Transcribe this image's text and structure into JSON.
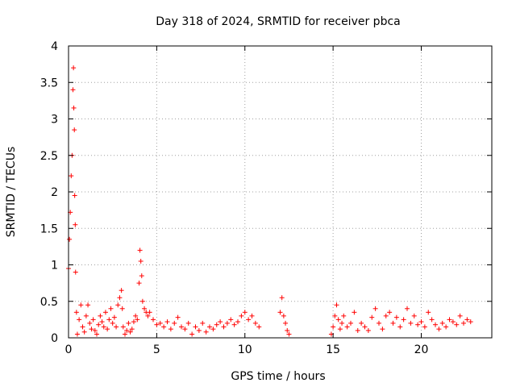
{
  "chart_data": {
    "type": "scatter",
    "title": "Day 318 of 2024, SRMTID for receiver pbca",
    "xlabel": "GPS time / hours",
    "ylabel": "SRMTID / TECUs",
    "xlim": [
      0,
      24
    ],
    "ylim": [
      0,
      4
    ],
    "xticks": [
      0,
      5,
      10,
      15,
      20
    ],
    "xtick_labels": [
      "0",
      "5",
      "10",
      "15",
      "20"
    ],
    "yticks": [
      0,
      0.5,
      1,
      1.5,
      2,
      2.5,
      3,
      3.5,
      4
    ],
    "ytick_labels": [
      "0",
      "0.5",
      "1",
      "1.5",
      "2",
      "2.5",
      "3",
      "3.5",
      "4"
    ],
    "grid": true,
    "marker": "+",
    "color": "#ff0000",
    "series": [
      {
        "name": "SRMTID",
        "x": [
          0.0,
          0.05,
          0.1,
          0.15,
          0.2,
          0.25,
          0.28,
          0.3,
          0.33,
          0.35,
          0.38,
          0.4,
          0.45,
          0.5,
          0.6,
          0.7,
          0.8,
          0.9,
          1.0,
          1.1,
          1.2,
          1.3,
          1.4,
          1.5,
          1.6,
          1.7,
          1.8,
          1.9,
          2.0,
          2.1,
          2.2,
          2.3,
          2.4,
          2.5,
          2.6,
          2.7,
          2.8,
          2.9,
          3.0,
          3.05,
          3.1,
          3.2,
          3.3,
          3.4,
          3.5,
          3.6,
          3.7,
          3.8,
          3.9,
          4.0,
          4.05,
          4.1,
          4.15,
          4.2,
          4.3,
          4.4,
          4.5,
          4.6,
          4.8,
          5.0,
          5.2,
          5.4,
          5.6,
          5.8,
          6.0,
          6.2,
          6.4,
          6.6,
          6.8,
          7.0,
          7.2,
          7.4,
          7.6,
          7.8,
          8.0,
          8.2,
          8.4,
          8.6,
          8.8,
          9.0,
          9.2,
          9.4,
          9.6,
          9.8,
          10.0,
          10.2,
          10.4,
          10.6,
          10.8,
          12.0,
          12.1,
          12.2,
          12.3,
          12.4,
          12.5,
          14.9,
          15.0,
          15.1,
          15.2,
          15.3,
          15.4,
          15.5,
          15.6,
          15.8,
          16.0,
          16.2,
          16.4,
          16.6,
          16.8,
          17.0,
          17.2,
          17.4,
          17.6,
          17.8,
          18.0,
          18.2,
          18.4,
          18.6,
          18.8,
          19.0,
          19.2,
          19.4,
          19.6,
          19.8,
          20.0,
          20.2,
          20.4,
          20.6,
          20.8,
          21.0,
          21.2,
          21.4,
          21.6,
          21.8,
          22.0,
          22.2,
          22.4,
          22.6,
          22.8
        ],
        "y": [
          0.95,
          1.35,
          1.72,
          2.22,
          2.5,
          3.4,
          3.7,
          3.15,
          2.85,
          1.95,
          1.55,
          0.9,
          0.35,
          0.05,
          0.25,
          0.45,
          0.15,
          0.08,
          0.3,
          0.45,
          0.2,
          0.12,
          0.25,
          0.1,
          0.05,
          0.18,
          0.3,
          0.22,
          0.15,
          0.35,
          0.12,
          0.25,
          0.4,
          0.2,
          0.28,
          0.15,
          0.45,
          0.55,
          0.65,
          0.4,
          0.15,
          0.05,
          0.1,
          0.2,
          0.08,
          0.12,
          0.22,
          0.3,
          0.25,
          0.75,
          1.2,
          1.05,
          0.85,
          0.5,
          0.4,
          0.35,
          0.3,
          0.35,
          0.25,
          0.18,
          0.2,
          0.15,
          0.22,
          0.12,
          0.2,
          0.28,
          0.15,
          0.12,
          0.2,
          0.05,
          0.15,
          0.1,
          0.2,
          0.08,
          0.15,
          0.12,
          0.18,
          0.22,
          0.15,
          0.2,
          0.25,
          0.18,
          0.22,
          0.3,
          0.35,
          0.25,
          0.3,
          0.2,
          0.15,
          0.35,
          0.55,
          0.3,
          0.2,
          0.1,
          0.05,
          0.05,
          0.15,
          0.3,
          0.45,
          0.25,
          0.12,
          0.2,
          0.3,
          0.15,
          0.2,
          0.35,
          0.1,
          0.2,
          0.15,
          0.1,
          0.28,
          0.4,
          0.2,
          0.12,
          0.3,
          0.35,
          0.2,
          0.28,
          0.15,
          0.25,
          0.4,
          0.2,
          0.3,
          0.18,
          0.22,
          0.15,
          0.35,
          0.25,
          0.18,
          0.12,
          0.2,
          0.15,
          0.25,
          0.22,
          0.18,
          0.3,
          0.2,
          0.25,
          0.22
        ]
      }
    ]
  }
}
